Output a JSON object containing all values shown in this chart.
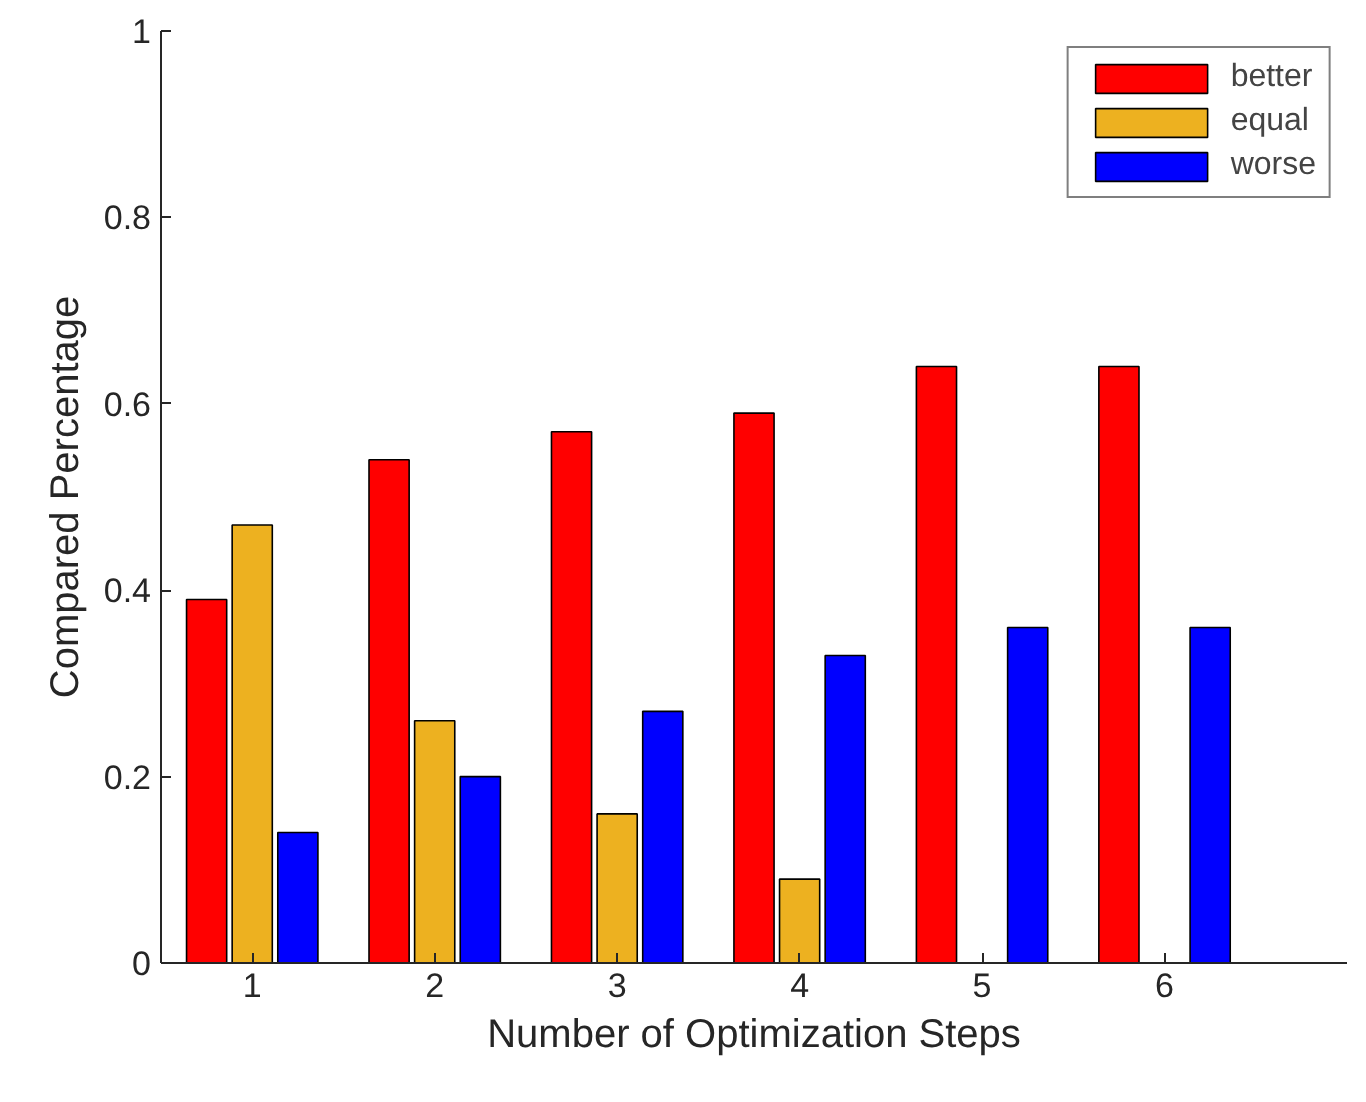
{
  "chart_data": {
    "type": "bar",
    "xlabel": "Number of Optimization Steps",
    "ylabel": "Compared Percentage",
    "x": [
      1,
      2,
      3,
      4,
      5,
      6
    ],
    "xlim": [
      0.5,
      7
    ],
    "xticks": [
      1,
      2,
      3,
      4,
      5,
      6
    ],
    "ylim": [
      0,
      1
    ],
    "yticks": [
      0,
      0.2,
      0.4,
      0.6,
      0.8,
      1
    ],
    "series": [
      {
        "name": "better",
        "color": "#ff0000",
        "values": [
          0.39,
          0.54,
          0.57,
          0.59,
          0.64,
          0.64
        ]
      },
      {
        "name": "equal",
        "color": "#edb120",
        "values": [
          0.47,
          0.26,
          0.16,
          0.09,
          null,
          null
        ]
      },
      {
        "name": "worse",
        "color": "#0000ff",
        "values": [
          0.14,
          0.2,
          0.27,
          0.33,
          0.36,
          0.36
        ]
      }
    ],
    "legend": "top right",
    "grid": false
  }
}
